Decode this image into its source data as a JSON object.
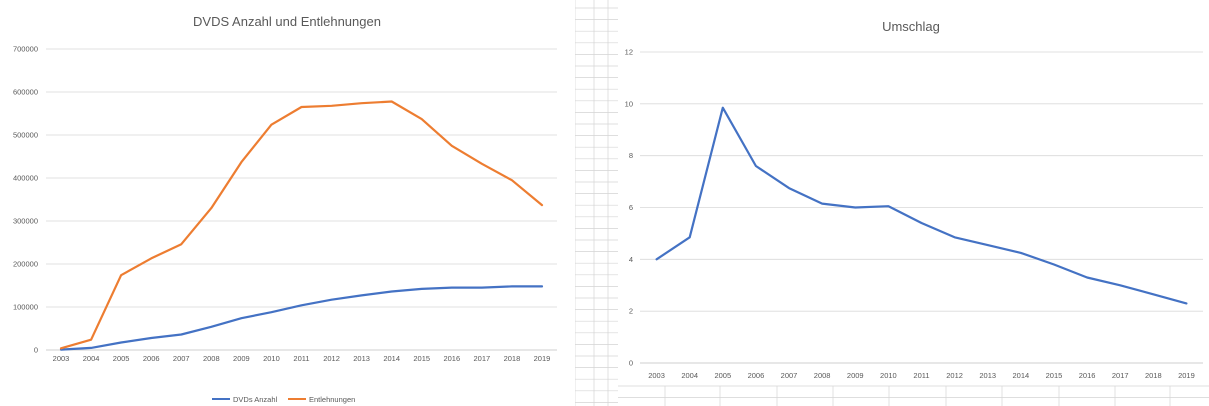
{
  "chart_data": [
    {
      "type": "line",
      "title": "DVDS Anzahl und Entlehnungen",
      "categories": [
        "2003",
        "2004",
        "2005",
        "2006",
        "2007",
        "2008",
        "2009",
        "2010",
        "2011",
        "2012",
        "2013",
        "2014",
        "2015",
        "2016",
        "2017",
        "2018",
        "2019"
      ],
      "series": [
        {
          "name": "DVDs Anzahl",
          "color": "#4472c4",
          "values": [
            1000,
            5000,
            17500,
            28000,
            36000,
            54000,
            74000,
            88000,
            104000,
            117000,
            127000,
            136000,
            142000,
            145000,
            145000,
            148000,
            148000
          ]
        },
        {
          "name": "Entlehnungen",
          "color": "#ed7d31",
          "values": [
            4000,
            24000,
            174000,
            213000,
            246000,
            330000,
            437000,
            524000,
            565000,
            568000,
            574000,
            578000,
            537000,
            475000,
            433000,
            395000,
            337000
          ]
        }
      ],
      "yticks": [
        "0",
        "100000",
        "200000",
        "300000",
        "400000",
        "500000",
        "600000",
        "700000"
      ],
      "ylim": [
        0,
        700000
      ],
      "grid": true,
      "legend": "bottom"
    },
    {
      "type": "line",
      "title": "Umschlag",
      "categories": [
        "2003",
        "2004",
        "2005",
        "2006",
        "2007",
        "2008",
        "2009",
        "2010",
        "2011",
        "2012",
        "2013",
        "2014",
        "2015",
        "2016",
        "2017",
        "2018",
        "2019"
      ],
      "series": [
        {
          "color": "#4472c4",
          "values": [
            4.0,
            4.85,
            9.85,
            7.6,
            6.75,
            6.15,
            6.0,
            6.05,
            5.4,
            4.85,
            4.55,
            4.25,
            3.8,
            3.3,
            3.0,
            2.65,
            2.3
          ]
        }
      ],
      "yticks": [
        "0",
        "2",
        "4",
        "6",
        "8",
        "10",
        "12"
      ],
      "ylim": [
        0,
        12
      ],
      "grid": true,
      "legend": "none"
    }
  ]
}
